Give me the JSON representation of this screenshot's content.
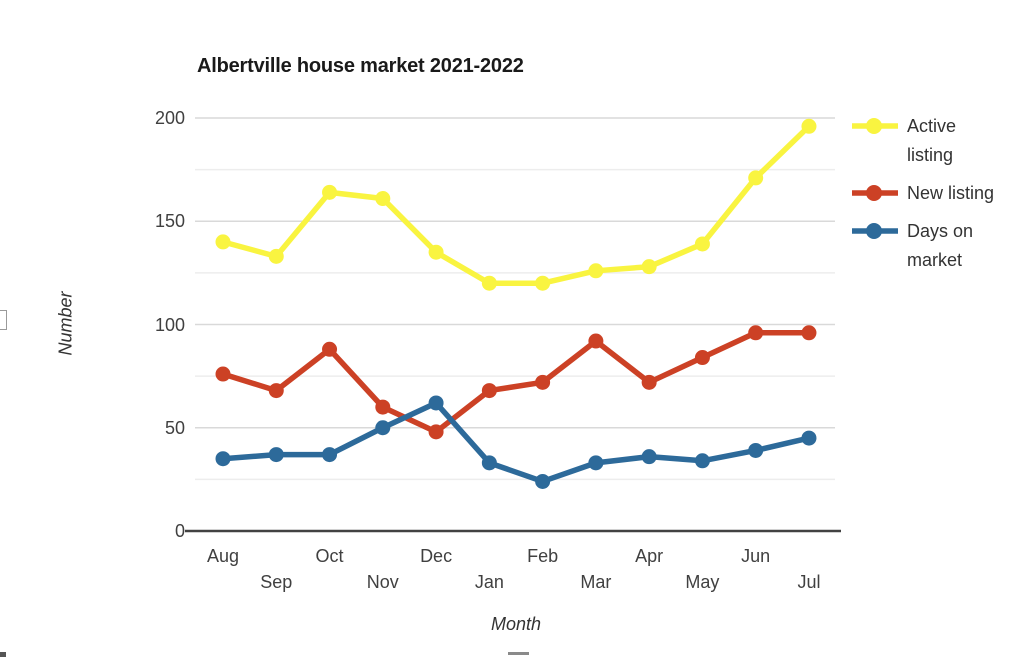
{
  "chart_data": {
    "type": "line",
    "title": "Albertville house market 2021-2022",
    "xlabel": "Month",
    "ylabel": "Number",
    "categories": [
      "Aug",
      "Sep",
      "Oct",
      "Nov",
      "Dec",
      "Jan",
      "Feb",
      "Mar",
      "Apr",
      "May",
      "Jun",
      "Jul"
    ],
    "series": [
      {
        "name": "Active listing",
        "color": "#f9f440",
        "values": [
          140,
          133,
          164,
          161,
          135,
          120,
          120,
          126,
          128,
          139,
          171,
          196
        ]
      },
      {
        "name": "New listing",
        "color": "#cc4125",
        "values": [
          76,
          68,
          88,
          60,
          48,
          68,
          72,
          92,
          72,
          84,
          96,
          96
        ]
      },
      {
        "name": "Days on market",
        "color": "#2d6a9a",
        "values": [
          35,
          37,
          37,
          50,
          62,
          33,
          24,
          33,
          36,
          34,
          39,
          45
        ]
      }
    ],
    "ylim": [
      0,
      200
    ],
    "y_major_ticks": [
      0,
      50,
      100,
      150,
      200
    ],
    "y_minor_step": 25,
    "grid": true,
    "legend_position": "right"
  },
  "colors": {
    "grid_major": "#d9d9d9",
    "grid_minor": "#ededed",
    "axis_line": "#424242",
    "tick_text": "#404040",
    "title_text": "#1a1a1a"
  }
}
